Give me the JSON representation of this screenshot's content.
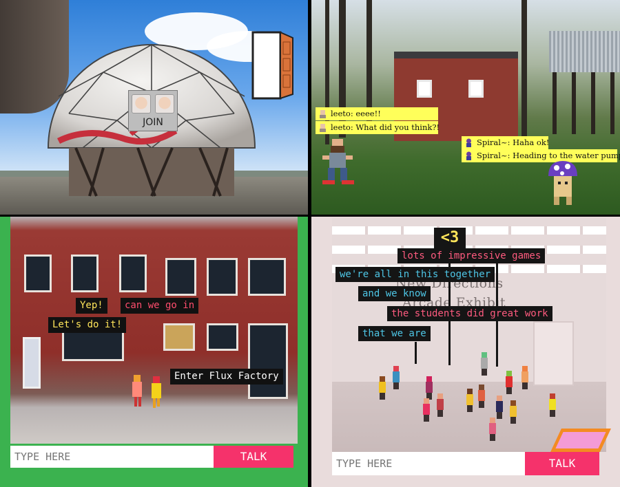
{
  "panel1": {
    "join_label": "JOIN"
  },
  "panel2": {
    "chats": [
      {
        "user": "leeto",
        "text": "leeto: eeee!!"
      },
      {
        "user": "leeto",
        "text": "leeto: What did you think?!"
      },
      {
        "user": "Spiral~",
        "text": "Spiral~: Haha ok!"
      },
      {
        "user": "Spiral~",
        "text": "Spiral~:  Heading to the water pump."
      }
    ]
  },
  "panel3": {
    "bubbles": [
      {
        "text": "Yep!",
        "color": "#ffe55a"
      },
      {
        "text": "can we go in",
        "color": "#ff4d6d"
      },
      {
        "text": "Let's do it!",
        "color": "#ffe55a"
      },
      {
        "text": "Enter Flux Factory",
        "color": "#ffffff"
      }
    ],
    "input_placeholder": "TYPE HERE",
    "talk_label": "TALK"
  },
  "panel4": {
    "heart": "<3",
    "wall_text": [
      "New Directions",
      "Arcade Exhibit"
    ],
    "bubbles": [
      {
        "text": "lots of impressive games",
        "color": "#ff5b7f"
      },
      {
        "text": "we're all in this together",
        "color": "#4ec6e6"
      },
      {
        "text": "and we know",
        "color": "#4ec6e6"
      },
      {
        "text": "the students did great work",
        "color": "#ff5b7f"
      },
      {
        "text": "that we are",
        "color": "#4ec6e6"
      }
    ],
    "input_placeholder": "TYPE HERE",
    "talk_label": "TALK"
  },
  "colors": {
    "talk_button": "#f5326b",
    "chat_bg": "#ffff5a",
    "panel3_frame": "#3bb24f"
  }
}
